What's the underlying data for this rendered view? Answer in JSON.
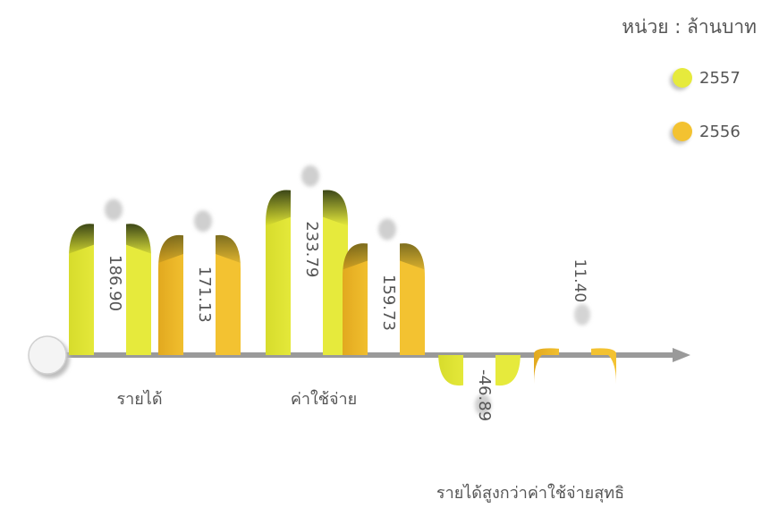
{
  "unit_label": "หน่วย : ล้านบาท",
  "chart_data": {
    "type": "bar",
    "categories": [
      "รายได้",
      "ค่าใช้จ่าย",
      "รายได้สูงกว่าค่าใช้จ่ายสุทธิ"
    ],
    "series": [
      {
        "name": "2557",
        "values": [
          186.9,
          233.79,
          -46.89
        ],
        "labels": [
          "186.90",
          "233.79",
          "-46.89"
        ],
        "color": "#e6ea3c"
      },
      {
        "name": "2556",
        "values": [
          171.13,
          159.73,
          11.4
        ],
        "labels": [
          "171.13",
          "159.73",
          "11.40"
        ],
        "color": "#f3c231"
      }
    ],
    "legend_position": "top-right",
    "grid": false
  }
}
